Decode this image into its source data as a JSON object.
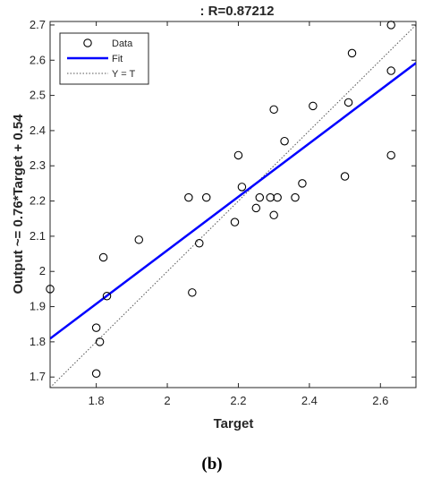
{
  "chart_data": {
    "type": "scatter",
    "title": ": R=0.87212",
    "xlabel": "Target",
    "ylabel": "Output ~= 0.76*Target + 0.54",
    "xlim": [
      1.67,
      2.7
    ],
    "ylim": [
      1.67,
      2.71
    ],
    "xticks": [
      "1.8",
      "2",
      "2.2",
      "2.4",
      "2.6"
    ],
    "yticks": [
      "1.7",
      "1.8",
      "1.9",
      "2",
      "2.1",
      "2.2",
      "2.3",
      "2.4",
      "2.5",
      "2.6",
      "2.7"
    ],
    "grid": false,
    "legend_position": "top-left",
    "legend": [
      "Data",
      "Fit",
      "Y = T"
    ],
    "fit": {
      "slope": 0.76,
      "intercept": 0.54,
      "color": "#0000ff"
    },
    "identity_line_color": "#555555",
    "series": [
      {
        "name": "Data",
        "points": [
          {
            "x": 1.67,
            "y": 1.95
          },
          {
            "x": 1.8,
            "y": 1.84
          },
          {
            "x": 1.8,
            "y": 1.71
          },
          {
            "x": 1.81,
            "y": 1.8
          },
          {
            "x": 1.82,
            "y": 2.04
          },
          {
            "x": 1.83,
            "y": 1.93
          },
          {
            "x": 1.92,
            "y": 2.09
          },
          {
            "x": 2.06,
            "y": 2.21
          },
          {
            "x": 2.07,
            "y": 1.94
          },
          {
            "x": 2.09,
            "y": 2.08
          },
          {
            "x": 2.11,
            "y": 2.21
          },
          {
            "x": 2.19,
            "y": 2.14
          },
          {
            "x": 2.2,
            "y": 2.33
          },
          {
            "x": 2.21,
            "y": 2.24
          },
          {
            "x": 2.25,
            "y": 2.18
          },
          {
            "x": 2.26,
            "y": 2.21
          },
          {
            "x": 2.29,
            "y": 2.21
          },
          {
            "x": 2.3,
            "y": 2.46
          },
          {
            "x": 2.3,
            "y": 2.16
          },
          {
            "x": 2.31,
            "y": 2.21
          },
          {
            "x": 2.33,
            "y": 2.37
          },
          {
            "x": 2.36,
            "y": 2.21
          },
          {
            "x": 2.38,
            "y": 2.25
          },
          {
            "x": 2.41,
            "y": 2.47
          },
          {
            "x": 2.5,
            "y": 2.27
          },
          {
            "x": 2.51,
            "y": 2.48
          },
          {
            "x": 2.52,
            "y": 2.62
          },
          {
            "x": 2.63,
            "y": 2.7
          },
          {
            "x": 2.63,
            "y": 2.57
          },
          {
            "x": 2.63,
            "y": 2.33
          }
        ]
      }
    ]
  },
  "caption": "(b)"
}
